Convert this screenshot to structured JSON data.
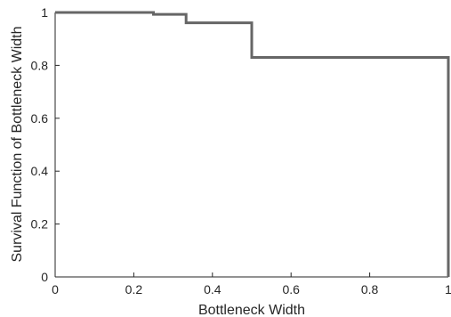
{
  "chart_data": {
    "type": "line",
    "subtype": "step",
    "title": "",
    "xlabel": "Bottleneck Width",
    "ylabel": "Survival Function of Bottleneck Width",
    "xlim": [
      0,
      1
    ],
    "ylim": [
      0,
      1
    ],
    "x_ticks": [
      0,
      0.2,
      0.4,
      0.6,
      0.8,
      1
    ],
    "x_tick_labels": [
      "0",
      "0.2",
      "0.4",
      "0.6",
      "0.8",
      "1"
    ],
    "y_ticks": [
      0,
      0.2,
      0.4,
      0.6,
      0.8,
      1
    ],
    "y_tick_labels": [
      "0",
      "0.2",
      "0.4",
      "0.6",
      "0.8",
      "1"
    ],
    "grid": false,
    "legend": "none",
    "line_color": "#666666",
    "series": [
      {
        "x": [
          0,
          0.25,
          0.25,
          0.333,
          0.333,
          0.5,
          0.5,
          1.0,
          1.0
        ],
        "y": [
          1.0,
          1.0,
          0.993,
          0.993,
          0.961,
          0.961,
          0.83,
          0.83,
          0.0
        ]
      }
    ]
  }
}
